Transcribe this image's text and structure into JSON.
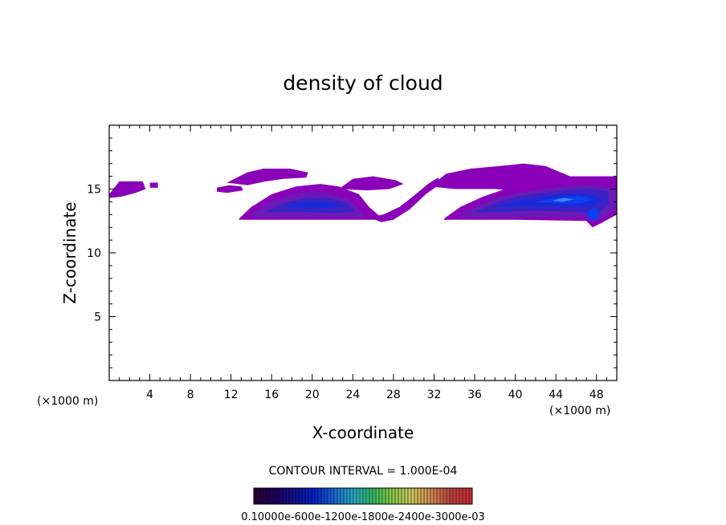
{
  "chart_data": {
    "type": "heatmap",
    "title": "density of cloud",
    "xlabel": "X-coordinate",
    "ylabel": "Z-coordinate",
    "x_unit_label": "(×1000 m)",
    "y_unit_label": "(×1000 m)",
    "xlim": [
      0,
      50
    ],
    "ylim": [
      0,
      20
    ],
    "x_ticks": [
      4,
      8,
      12,
      16,
      20,
      24,
      28,
      32,
      36,
      40,
      44,
      48
    ],
    "x_tick_labels": [
      "4",
      "8",
      "12",
      "16",
      "20",
      "24",
      "28",
      "32",
      "36",
      "40",
      "44",
      "48"
    ],
    "y_ticks": [
      5,
      10,
      15
    ],
    "y_tick_labels": [
      "5",
      "10",
      "15"
    ],
    "contour_interval_text": "CONTOUR INTERVAL = 1.000E-04",
    "colorbar_labels_text": "0.10000e-600e-1200e-1800e-2400e-3000e-03",
    "colorbar_colors": [
      "#2a0033",
      "#200060",
      "#101090",
      "#0022cc",
      "#1a6ad6",
      "#2aa8c8",
      "#33bb66",
      "#8acc44",
      "#d4c860",
      "#d48a50",
      "#c04040",
      "#cc3030"
    ],
    "level_colors": [
      "#8a00b8",
      "#6a1ab8",
      "#3a22c4",
      "#1a2ad8",
      "#0a40f0",
      "#3a88f8"
    ],
    "regions": [
      {
        "name": "left-upper-fragment",
        "level": 0,
        "polygon": [
          [
            0,
            14.6
          ],
          [
            1,
            15.6
          ],
          [
            3.3,
            15.6
          ],
          [
            3.6,
            15.0
          ],
          [
            2.6,
            14.7
          ],
          [
            1.2,
            14.4
          ],
          [
            0,
            14.3
          ]
        ]
      },
      {
        "name": "left-upper-small",
        "level": 0,
        "polygon": [
          [
            4.0,
            15.5
          ],
          [
            4.8,
            15.5
          ],
          [
            4.8,
            15.1
          ],
          [
            4.0,
            15.1
          ]
        ]
      },
      {
        "name": "west-upper-streak",
        "level": 0,
        "polygon": [
          [
            10.6,
            15.1
          ],
          [
            11.8,
            15.3
          ],
          [
            13.0,
            15.2
          ],
          [
            13.2,
            14.9
          ],
          [
            11.6,
            14.7
          ],
          [
            10.6,
            14.8
          ]
        ]
      },
      {
        "name": "mid-upper-cap",
        "level": 0,
        "polygon": [
          [
            11.6,
            15.5
          ],
          [
            13.6,
            16.3
          ],
          [
            15.2,
            16.6
          ],
          [
            17.8,
            16.6
          ],
          [
            19.6,
            16.3
          ],
          [
            19.4,
            15.9
          ],
          [
            17.2,
            15.8
          ],
          [
            15.4,
            15.6
          ],
          [
            13.6,
            15.3
          ]
        ]
      },
      {
        "name": "west-anvil-outer",
        "level": 0,
        "polygon": [
          [
            12.8,
            12.7
          ],
          [
            14.0,
            13.6
          ],
          [
            16.0,
            14.6
          ],
          [
            18.4,
            15.2
          ],
          [
            20.8,
            15.4
          ],
          [
            22.6,
            15.2
          ],
          [
            24.6,
            14.6
          ],
          [
            25.6,
            13.6
          ],
          [
            26.6,
            12.9
          ],
          [
            26.8,
            12.6
          ],
          [
            12.8,
            12.6
          ]
        ]
      },
      {
        "name": "west-anvil-level1",
        "level": 1,
        "polygon": [
          [
            14.0,
            13.0
          ],
          [
            15.6,
            13.9
          ],
          [
            17.6,
            14.5
          ],
          [
            20.0,
            14.8
          ],
          [
            22.0,
            14.6
          ],
          [
            23.8,
            14.1
          ],
          [
            24.8,
            13.2
          ],
          [
            25.2,
            12.8
          ],
          [
            14.0,
            12.8
          ]
        ]
      },
      {
        "name": "west-anvil-level2",
        "level": 2,
        "polygon": [
          [
            15.4,
            13.2
          ],
          [
            17.2,
            13.9
          ],
          [
            19.4,
            14.3
          ],
          [
            21.6,
            14.3
          ],
          [
            23.4,
            13.9
          ],
          [
            24.2,
            13.3
          ],
          [
            22.4,
            13.1
          ],
          [
            19.8,
            13.2
          ],
          [
            17.4,
            13.2
          ]
        ]
      },
      {
        "name": "west-anvil-level3",
        "level": 3,
        "polygon": [
          [
            17.0,
            13.6
          ],
          [
            19.2,
            14.0
          ],
          [
            21.4,
            14.0
          ],
          [
            23.0,
            13.7
          ],
          [
            21.6,
            13.5
          ],
          [
            19.2,
            13.5
          ]
        ]
      },
      {
        "name": "central-bridge",
        "level": 0,
        "polygon": [
          [
            25.6,
            12.8
          ],
          [
            27.0,
            13.0
          ],
          [
            28.6,
            13.6
          ],
          [
            30.2,
            14.6
          ],
          [
            31.4,
            15.4
          ],
          [
            32.4,
            15.9
          ],
          [
            32.6,
            15.4
          ],
          [
            31.2,
            14.6
          ],
          [
            29.6,
            13.4
          ],
          [
            28.0,
            12.6
          ],
          [
            26.8,
            12.4
          ]
        ]
      },
      {
        "name": "central-upper-band",
        "level": 0,
        "polygon": [
          [
            22.6,
            15.0
          ],
          [
            24.0,
            15.8
          ],
          [
            26.0,
            16.0
          ],
          [
            28.2,
            15.7
          ],
          [
            29.0,
            15.4
          ],
          [
            27.6,
            15.0
          ],
          [
            25.4,
            14.9
          ]
        ]
      },
      {
        "name": "east-upper-canopy",
        "level": 0,
        "polygon": [
          [
            31.6,
            15.2
          ],
          [
            33.2,
            16.2
          ],
          [
            35.6,
            16.6
          ],
          [
            38.4,
            16.8
          ],
          [
            40.8,
            17.0
          ],
          [
            43.0,
            16.8
          ],
          [
            44.2,
            16.4
          ],
          [
            45.4,
            16.0
          ],
          [
            50.0,
            16.0
          ],
          [
            50.0,
            14.0
          ],
          [
            44.0,
            14.6
          ],
          [
            38.0,
            15.0
          ],
          [
            34.0,
            15.0
          ]
        ]
      },
      {
        "name": "east-anvil-outer",
        "level": 0,
        "polygon": [
          [
            33.0,
            12.7
          ],
          [
            34.6,
            13.6
          ],
          [
            36.8,
            14.4
          ],
          [
            39.0,
            15.0
          ],
          [
            41.4,
            15.4
          ],
          [
            44.0,
            15.6
          ],
          [
            46.4,
            15.8
          ],
          [
            48.6,
            15.8
          ],
          [
            50.0,
            15.6
          ],
          [
            50.0,
            13.0
          ],
          [
            48.4,
            12.3
          ],
          [
            47.6,
            12.0
          ],
          [
            47.0,
            12.5
          ],
          [
            40.0,
            12.6
          ],
          [
            33.0,
            12.6
          ]
        ]
      },
      {
        "name": "east-anvil-level1",
        "level": 1,
        "polygon": [
          [
            34.4,
            12.9
          ],
          [
            36.2,
            13.7
          ],
          [
            38.4,
            14.4
          ],
          [
            40.8,
            14.8
          ],
          [
            43.4,
            15.1
          ],
          [
            46.0,
            15.3
          ],
          [
            48.4,
            15.3
          ],
          [
            50.0,
            15.0
          ],
          [
            50.0,
            13.4
          ],
          [
            48.4,
            12.6
          ],
          [
            47.6,
            12.4
          ],
          [
            46.6,
            12.8
          ],
          [
            40.0,
            12.8
          ],
          [
            34.4,
            12.8
          ]
        ]
      },
      {
        "name": "east-anvil-level2",
        "level": 2,
        "polygon": [
          [
            36.0,
            13.2
          ],
          [
            38.0,
            13.9
          ],
          [
            40.2,
            14.4
          ],
          [
            42.6,
            14.7
          ],
          [
            45.0,
            14.9
          ],
          [
            47.4,
            15.0
          ],
          [
            49.2,
            14.8
          ],
          [
            49.2,
            13.8
          ],
          [
            48.0,
            13.0
          ],
          [
            46.4,
            13.2
          ],
          [
            42.0,
            13.3
          ],
          [
            38.0,
            13.2
          ]
        ]
      },
      {
        "name": "east-anvil-level3",
        "level": 3,
        "polygon": [
          [
            38.0,
            13.6
          ],
          [
            40.4,
            14.1
          ],
          [
            42.8,
            14.4
          ],
          [
            45.2,
            14.6
          ],
          [
            47.4,
            14.6
          ],
          [
            48.6,
            14.2
          ],
          [
            47.6,
            13.6
          ],
          [
            45.0,
            13.6
          ],
          [
            41.0,
            13.6
          ]
        ]
      },
      {
        "name": "east-core-level4",
        "level": 4,
        "polygon": [
          [
            42.0,
            14.0
          ],
          [
            44.2,
            14.3
          ],
          [
            46.2,
            14.5
          ],
          [
            47.8,
            14.2
          ],
          [
            46.4,
            13.9
          ],
          [
            44.0,
            13.9
          ]
        ]
      },
      {
        "name": "east-core-level5",
        "level": 5,
        "polygon": [
          [
            43.6,
            14.1
          ],
          [
            44.8,
            14.3
          ],
          [
            45.8,
            14.2
          ],
          [
            44.6,
            14.0
          ]
        ]
      },
      {
        "name": "east-tail-level4",
        "level": 4,
        "polygon": [
          [
            47.0,
            13.2
          ],
          [
            47.8,
            13.6
          ],
          [
            48.4,
            13.0
          ],
          [
            47.8,
            12.5
          ],
          [
            47.2,
            12.7
          ]
        ]
      }
    ]
  }
}
